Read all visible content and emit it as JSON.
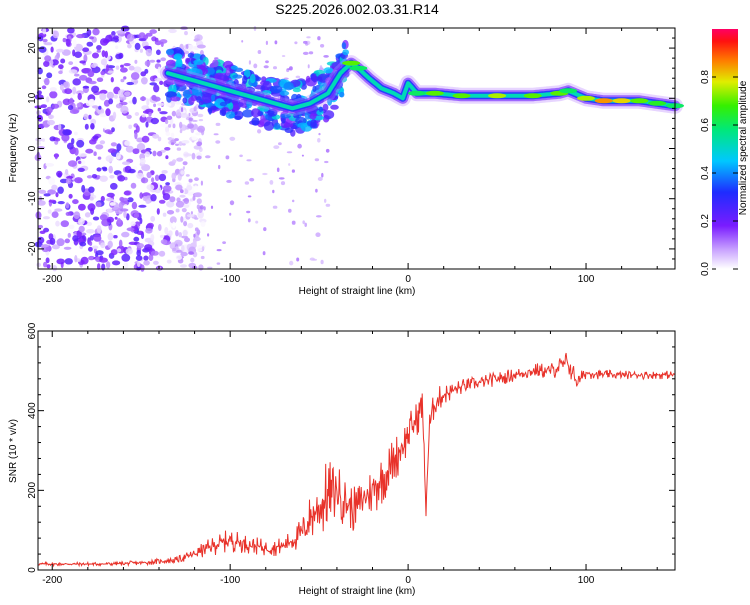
{
  "title": "S225.2026.002.03.31.R14",
  "chart_data": [
    {
      "type": "heatmap",
      "title": "S225.2026.002.03.31.R14",
      "xlabel": "Height of straight line (km)",
      "ylabel": "Frequency (Hz)",
      "xlim": [
        -208,
        150
      ],
      "ylim": [
        -24,
        24
      ],
      "xticks": [
        "-200",
        "-100",
        "0",
        "100"
      ],
      "xtick_values": [
        -200,
        -100,
        0,
        100
      ],
      "yticks": [
        "-20",
        "-10",
        "0",
        "10",
        "20"
      ],
      "ytick_values": [
        -20,
        -10,
        0,
        10,
        20
      ],
      "colorbar": {
        "label": "Normalized spectral amplitude",
        "range": [
          0.0,
          1.0
        ],
        "ticks": [
          "0.0",
          "0.2",
          "0.4",
          "0.6",
          "0.8"
        ],
        "tick_values": [
          0.0,
          0.2,
          0.4,
          0.6,
          0.8
        ],
        "colormap": "rainbow (white-purple-blue-cyan-green-yellow-red)"
      },
      "ridge": {
        "x": [
          -135,
          -125,
          -115,
          -105,
          -95,
          -85,
          -75,
          -65,
          -55,
          -45,
          -38,
          -32,
          -28,
          -22,
          -15,
          -8,
          -3,
          0,
          5,
          15,
          30,
          50,
          70,
          85,
          90,
          100,
          110,
          120,
          130,
          140,
          150
        ],
        "y": [
          15,
          14,
          13,
          12,
          11,
          10,
          9,
          8,
          9,
          11,
          15,
          17,
          16,
          14,
          12,
          11,
          10,
          13,
          11,
          11,
          10.5,
          10.5,
          10.5,
          11,
          11.5,
          10,
          9.5,
          9.5,
          9.5,
          9,
          8.5
        ],
        "amplitude": [
          0.35,
          0.4,
          0.35,
          0.35,
          0.3,
          0.3,
          0.3,
          0.25,
          0.3,
          0.4,
          0.55,
          0.7,
          0.6,
          0.55,
          0.5,
          0.5,
          0.45,
          0.5,
          0.6,
          0.7,
          0.7,
          0.75,
          0.7,
          0.7,
          0.6,
          0.75,
          0.85,
          0.8,
          0.7,
          0.65,
          0.6
        ]
      },
      "noise_region": {
        "x_range": [
          -208,
          -135
        ],
        "amplitude": 0.25
      }
    },
    {
      "type": "line",
      "xlabel": "Height of straight line (km)",
      "ylabel": "SNR (10 * v/v)",
      "xlim": [
        -208,
        150
      ],
      "ylim": [
        0,
        600
      ],
      "xticks": [
        "-200",
        "-100",
        "0",
        "100"
      ],
      "xtick_values": [
        -200,
        -100,
        0,
        100
      ],
      "yticks": [
        "0",
        "200",
        "400",
        "600"
      ],
      "ytick_values": [
        0,
        200,
        400,
        600
      ],
      "color": "#e8322a",
      "series": [
        {
          "x": [
            -208,
            -190,
            -170,
            -150,
            -130,
            -120,
            -110,
            -100,
            -90,
            -80,
            -70,
            -60,
            -55,
            -50,
            -45,
            -40,
            -35,
            -30,
            -25,
            -20,
            -15,
            -10,
            -5,
            0,
            5,
            8,
            10,
            12,
            15,
            20,
            25,
            30,
            40,
            50,
            60,
            70,
            80,
            90,
            95,
            100,
            110,
            120,
            130,
            140,
            150
          ],
          "y": [
            15,
            15,
            15,
            18,
            25,
            40,
            60,
            75,
            65,
            55,
            60,
            90,
            130,
            160,
            185,
            200,
            170,
            150,
            180,
            200,
            230,
            260,
            300,
            340,
            380,
            420,
            150,
            360,
            420,
            440,
            450,
            460,
            470,
            480,
            490,
            500,
            500,
            520,
            470,
            495,
            490,
            490,
            490,
            490,
            490
          ],
          "spread": [
            8,
            8,
            8,
            10,
            15,
            25,
            40,
            50,
            40,
            35,
            40,
            70,
            110,
            150,
            160,
            120,
            110,
            100,
            110,
            120,
            120,
            110,
            100,
            90,
            80,
            80,
            60,
            70,
            60,
            50,
            40,
            35,
            30,
            30,
            30,
            35,
            35,
            60,
            40,
            25,
            20,
            18,
            18,
            18,
            18
          ]
        }
      ]
    }
  ]
}
